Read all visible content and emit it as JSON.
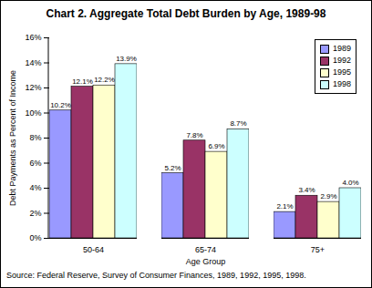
{
  "chart_data": {
    "type": "bar",
    "title": "Chart 2. Aggregate Total Debt Burden by Age, 1989-98",
    "x_label": "Age Group",
    "y_label": "Debt Payments as Percent of Income",
    "source": "Source: Federal Reserve, Survey of Consumer Finances, 1989, 1992, 1995, 1998.",
    "categories": [
      "50-64",
      "65-74",
      "75+"
    ],
    "series": [
      {
        "name": "1989",
        "color": "#9999ff",
        "values": [
          10.2,
          5.2,
          2.1
        ],
        "value_labels": [
          "10.2%",
          "5.2%",
          "2.1%"
        ]
      },
      {
        "name": "1992",
        "color": "#993366",
        "values": [
          12.1,
          7.8,
          3.4
        ],
        "value_labels": [
          "12.1%",
          "7.8%",
          "3.4%"
        ]
      },
      {
        "name": "1995",
        "color": "#ffffcc",
        "values": [
          12.2,
          6.9,
          2.9
        ],
        "value_labels": [
          "12.2%",
          "6.9%",
          "2.9%"
        ]
      },
      {
        "name": "1998",
        "color": "#ccffff",
        "values": [
          13.9,
          8.7,
          4.0
        ],
        "value_labels": [
          "13.9%",
          "8.7%",
          "4.0%"
        ]
      }
    ],
    "ylim": [
      0,
      16
    ],
    "yticks": [
      {
        "value": 0,
        "label": "0%"
      },
      {
        "value": 2,
        "label": "2%"
      },
      {
        "value": 4,
        "label": "4%"
      },
      {
        "value": 6,
        "label": "6%"
      },
      {
        "value": 8,
        "label": "8%"
      },
      {
        "value": 10,
        "label": "10%"
      },
      {
        "value": 12,
        "label": "12%"
      },
      {
        "value": 14,
        "label": "14%"
      },
      {
        "value": 16,
        "label": "16%"
      }
    ],
    "grid": false,
    "legend": "top-right",
    "data_labels": true
  }
}
